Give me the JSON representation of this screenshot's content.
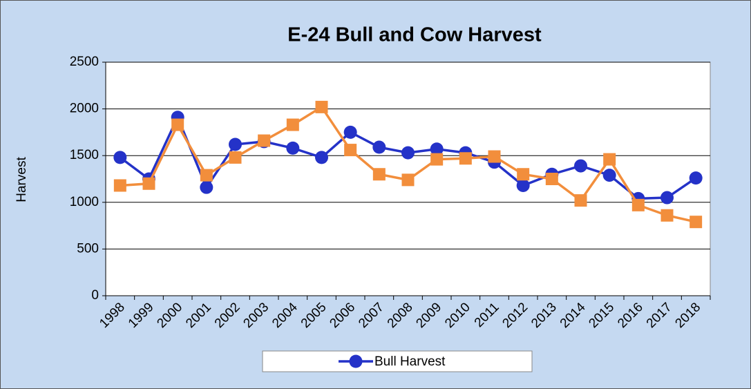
{
  "chart_data": {
    "type": "line",
    "title": "E-24 Bull and Cow Harvest",
    "y_label": "Harvest",
    "categories": [
      "1998",
      "1999",
      "2000",
      "2001",
      "2002",
      "2003",
      "2004",
      "2005",
      "2006",
      "2007",
      "2008",
      "2009",
      "2010",
      "2011",
      "2012",
      "2013",
      "2014",
      "2015",
      "2016",
      "2017",
      "2018"
    ],
    "series": [
      {
        "name": "Bull Harvest",
        "color": "#2432c8",
        "marker": "circle",
        "values": [
          1480,
          1250,
          1910,
          1160,
          1620,
          1650,
          1580,
          1480,
          1750,
          1590,
          1530,
          1570,
          1530,
          1430,
          1180,
          1300,
          1390,
          1290,
          1040,
          1050,
          1260
        ]
      },
      {
        "color": "#f28e3c",
        "marker": "square",
        "values": [
          1180,
          1200,
          1830,
          1290,
          1480,
          1660,
          1830,
          2020,
          1560,
          1300,
          1240,
          1460,
          1470,
          1490,
          1300,
          1250,
          1020,
          1460,
          970,
          860,
          790
        ]
      }
    ],
    "ylim": [
      0,
      2500
    ],
    "yticks": [
      0,
      500,
      1000,
      1500,
      2000,
      2500
    ],
    "grid": true,
    "legend": "bottom"
  }
}
